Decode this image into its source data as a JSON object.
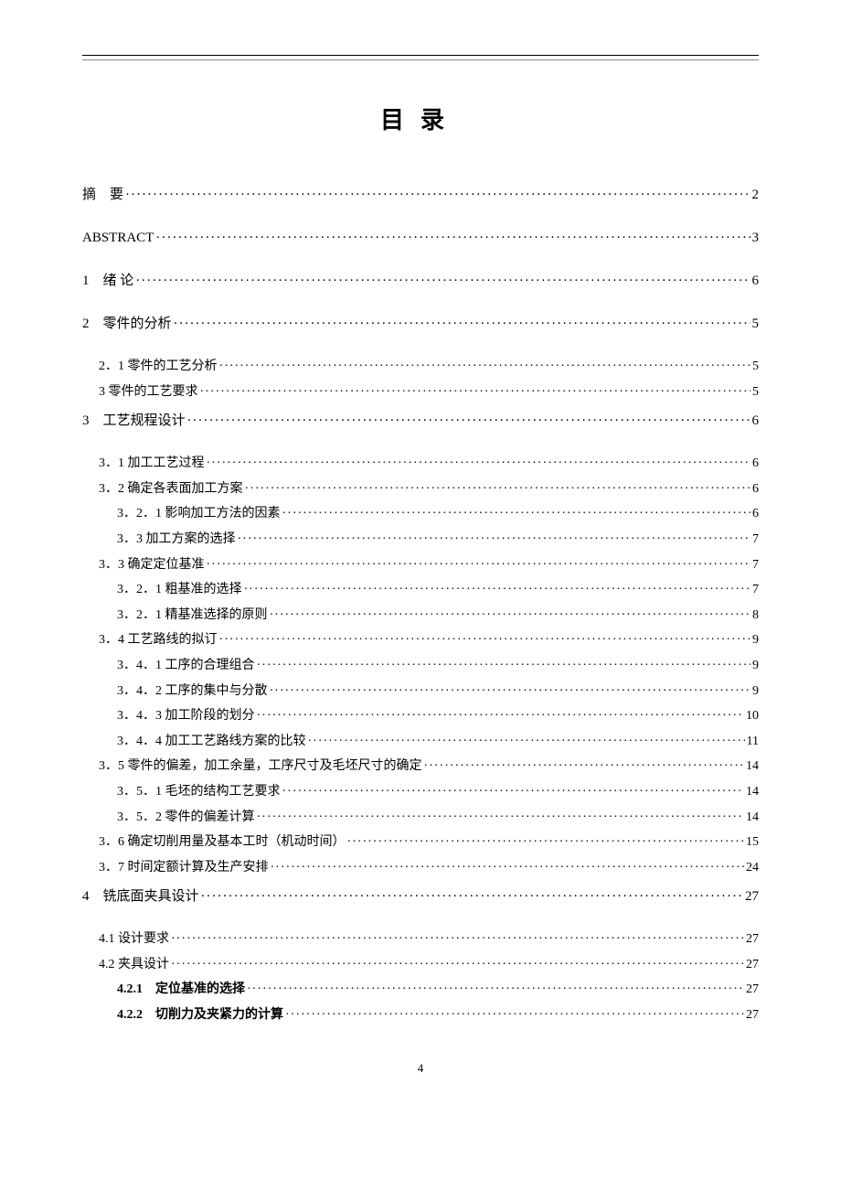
{
  "title": "目录",
  "pageNumber": "4",
  "toc": [
    {
      "level": 0,
      "label": "摘　要",
      "page": "2",
      "spaced": false
    },
    {
      "level": 0,
      "label": "ABSTRACT",
      "page": "3"
    },
    {
      "level": 0,
      "label": "1　绪 论",
      "page": "6"
    },
    {
      "level": 0,
      "label": "2　零件的分析",
      "page": "5"
    },
    {
      "level": 1,
      "label": "2．1 零件的工艺分析",
      "page": "5"
    },
    {
      "level": 1,
      "label": "3 零件的工艺要求",
      "page": "5"
    },
    {
      "level": 0,
      "label": "3　工艺规程设计",
      "page": "6"
    },
    {
      "level": 1,
      "label": "3．1 加工工艺过程",
      "page": "6"
    },
    {
      "level": 1,
      "label": "3．2 确定各表面加工方案",
      "page": "6"
    },
    {
      "level": 2,
      "label": "3．2．1 影响加工方法的因素",
      "page": "6"
    },
    {
      "level": 2,
      "label": "3．3 加工方案的选择",
      "page": "7"
    },
    {
      "level": 1,
      "label": "3．3 确定定位基准",
      "page": "7"
    },
    {
      "level": 2,
      "label": "3．2．1 粗基准的选择",
      "page": "7"
    },
    {
      "level": 2,
      "label": "3．2．1 精基准选择的原则",
      "page": "8"
    },
    {
      "level": 1,
      "label": "3．4 工艺路线的拟订",
      "page": "9"
    },
    {
      "level": 2,
      "label": "3．4．1 工序的合理组合",
      "page": "9"
    },
    {
      "level": 2,
      "label": "3．4．2 工序的集中与分散",
      "page": "9"
    },
    {
      "level": 2,
      "label": "3．4．3 加工阶段的划分",
      "page": "10"
    },
    {
      "level": 2,
      "label": "3．4．4 加工工艺路线方案的比较",
      "page": "11"
    },
    {
      "level": 1,
      "label": "3．5 零件的偏差，加工余量，工序尺寸及毛坯尺寸的确定",
      "page": "14"
    },
    {
      "level": 2,
      "label": "3．5．1 毛坯的结构工艺要求",
      "page": "14"
    },
    {
      "level": 2,
      "label": "3．5．2 零件的偏差计算",
      "page": "14"
    },
    {
      "level": 1,
      "label": "3．6 确定切削用量及基本工时（机动时间）",
      "page": "15"
    },
    {
      "level": 1,
      "label": "3．7 时间定额计算及生产安排",
      "page": "24"
    },
    {
      "level": 0,
      "label": "4　铣底面夹具设计",
      "page": "27"
    },
    {
      "level": 1,
      "label": "4.1 设计要求",
      "page": "27"
    },
    {
      "level": 1,
      "label": "4.2 夹具设计",
      "page": "27"
    },
    {
      "level": 2,
      "label": "4.2.1　定位基准的选择",
      "page": "27",
      "bold": true
    },
    {
      "level": 2,
      "label": "4.2.2　切削力及夹紧力的计算",
      "page": "27",
      "bold": true
    }
  ]
}
